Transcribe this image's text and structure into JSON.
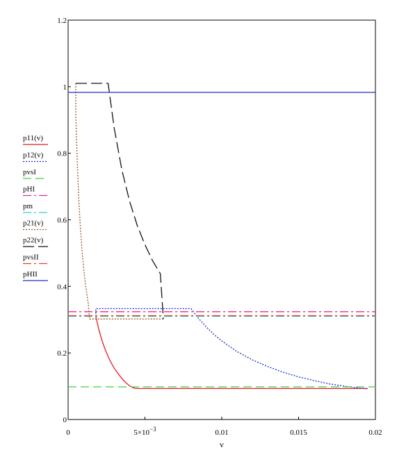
{
  "chart_data": {
    "type": "line",
    "title": "",
    "xlabel": "v",
    "ylabel": "",
    "xlim": [
      0,
      0.02
    ],
    "ylim": [
      0,
      1.2
    ],
    "grid": false,
    "legend_position": "left",
    "x_ticks": [
      {
        "value": 0,
        "label": "0"
      },
      {
        "value": 0.005,
        "label": "5×10",
        "exp": "−3"
      },
      {
        "value": 0.01,
        "label": "0.01"
      },
      {
        "value": 0.015,
        "label": "0.015"
      },
      {
        "value": 0.02,
        "label": "0.02"
      }
    ],
    "y_ticks": [
      {
        "value": 0,
        "label": "0"
      },
      {
        "value": 0.2,
        "label": "0.2"
      },
      {
        "value": 0.4,
        "label": "0.4"
      },
      {
        "value": 0.6,
        "label": "0.6"
      },
      {
        "value": 0.8,
        "label": "0.8"
      },
      {
        "value": 1,
        "label": "1"
      },
      {
        "value": 1.2,
        "label": "1.2"
      }
    ],
    "series": [
      {
        "name": "p11(v)",
        "color": "#e8191e",
        "dash": "solid",
        "x": [
          0.0018,
          0.002,
          0.0022,
          0.0024,
          0.0026,
          0.0028,
          0.003,
          0.0032,
          0.0034,
          0.0036,
          0.0038,
          0.004,
          0.0042,
          0.0044,
          0.005,
          0.007,
          0.01,
          0.013,
          0.016,
          0.0195
        ],
        "y": [
          0.31,
          0.27,
          0.238,
          0.212,
          0.189,
          0.17,
          0.154,
          0.141,
          0.129,
          0.118,
          0.109,
          0.101,
          0.096,
          0.093,
          0.093,
          0.093,
          0.093,
          0.093,
          0.093,
          0.093
        ]
      },
      {
        "name": "p12(v)",
        "color": "#1a2bcc",
        "dash": "dotted",
        "x": [
          0.0018,
          0.0018,
          0.006,
          0.008,
          0.0085,
          0.009,
          0.0095,
          0.01,
          0.011,
          0.012,
          0.013,
          0.014,
          0.015,
          0.016,
          0.017,
          0.018,
          0.019,
          0.0195
        ],
        "y": [
          0.31,
          0.333,
          0.333,
          0.333,
          0.303,
          0.278,
          0.255,
          0.236,
          0.204,
          0.179,
          0.159,
          0.142,
          0.128,
          0.117,
          0.107,
          0.1,
          0.094,
          0.092
        ]
      },
      {
        "name": "pvsI",
        "color": "#3ed13e",
        "dash": "dash",
        "x": [
          0,
          0.02
        ],
        "y": [
          0.098,
          0.098
        ]
      },
      {
        "name": "pHI",
        "color": "#e8249b",
        "dash": "dashdot",
        "x": [
          0,
          0.02
        ],
        "y": [
          0.324,
          0.324
        ]
      },
      {
        "name": "pm",
        "color": "#2ecfd6",
        "dash": "dashdot",
        "x": [
          0,
          0.02
        ],
        "y": [
          0.31,
          0.31
        ]
      },
      {
        "name": "p21(v)",
        "color": "#9a5a1e",
        "dash": "dotted",
        "x": [
          0.0005,
          0.0005,
          0.0006,
          0.0007,
          0.0008,
          0.0009,
          0.001,
          0.0011,
          0.0012,
          0.0013,
          0.0014,
          0.005,
          0.0062
        ],
        "y": [
          1.01,
          0.918,
          0.765,
          0.656,
          0.574,
          0.51,
          0.459,
          0.417,
          0.383,
          0.353,
          0.302,
          0.302,
          0.302
        ]
      },
      {
        "name": "p22(v)",
        "color": "#111111",
        "dash": "longdash",
        "x": [
          0.0005,
          0.0026,
          0.003,
          0.0035,
          0.004,
          0.0045,
          0.005,
          0.0055,
          0.006,
          0.0062
        ],
        "y": [
          1.01,
          1.01,
          0.875,
          0.75,
          0.656,
          0.583,
          0.525,
          0.477,
          0.438,
          0.302
        ]
      },
      {
        "name": "pvsII",
        "color": "#e8401e",
        "dash": "dashdot",
        "x": [
          0,
          0.02
        ],
        "y": [
          0.312,
          0.312
        ]
      },
      {
        "name": "pHII",
        "color": "#1a2bcc",
        "dash": "solid",
        "x": [
          0,
          0.02
        ],
        "y": [
          0.983,
          0.983
        ]
      }
    ]
  }
}
